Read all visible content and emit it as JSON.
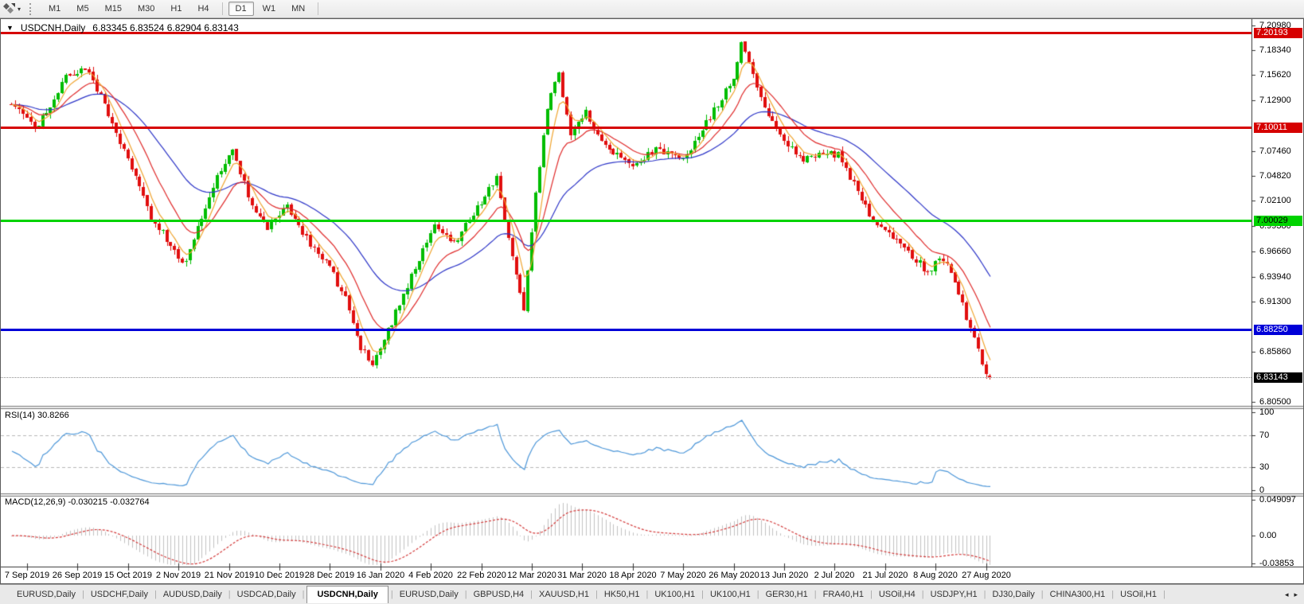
{
  "toolbar": {
    "timeframes": [
      "M1",
      "M5",
      "M15",
      "M30",
      "H1",
      "H4",
      "D1",
      "W1",
      "MN"
    ],
    "active_timeframe": "D1"
  },
  "icons": {
    "title_dropdown": "▼",
    "tool_dropdown": "▾",
    "tab_scroll_left": "◂",
    "tab_scroll_right": "▸"
  },
  "chart_header": {
    "symbol": "USDCNH,Daily",
    "ohlc": "6.83345 6.83524 6.82904 6.83143"
  },
  "price_axis": {
    "ticks": [
      "7.20980",
      "7.18340",
      "7.15620",
      "7.12900",
      "7.07460",
      "7.04820",
      "7.02100",
      "6.99380",
      "6.96660",
      "6.93940",
      "6.91300",
      "6.85860",
      "6.80500"
    ]
  },
  "levels": [
    {
      "label": "7.20193",
      "value": 7.20193,
      "color": "#d60000",
      "text_color": "#ffffff"
    },
    {
      "label": "7.10011",
      "value": 7.10011,
      "color": "#d60000",
      "text_color": "#ffffff"
    },
    {
      "label": "7.00029",
      "value": 7.00029,
      "color": "#00d300",
      "text_color": "#000000"
    },
    {
      "label": "6.88250",
      "value": 6.8825,
      "color": "#0000d8",
      "text_color": "#ffffff"
    }
  ],
  "current_price": {
    "label": "6.83143",
    "value": 6.83143,
    "color": "#000000",
    "text_color": "#ffffff"
  },
  "rsi": {
    "label": "RSI(14) 30.8266",
    "period": 14,
    "value": 30.8266,
    "axis_labels": [
      "100",
      "70",
      "30",
      "0"
    ],
    "axis_values": [
      100,
      70,
      30,
      0
    ],
    "level_lines": [
      70,
      30
    ]
  },
  "macd": {
    "label": "MACD(12,26,9) -0.030215 -0.032764",
    "fast": 12,
    "slow": 26,
    "signal": 9,
    "main_value": -0.030215,
    "signal_value": -0.032764,
    "axis_labels": [
      {
        "label": "0.049097",
        "value": 0.049097
      },
      {
        "label": "0.00",
        "value": 0
      },
      {
        "label": "-0.03853",
        "value": -0.03853
      }
    ]
  },
  "tabs": {
    "separator": "|",
    "active_index": 4,
    "items": [
      "EURUSD,Daily",
      "USDCHF,Daily",
      "AUDUSD,Daily",
      "USDCAD,Daily",
      "USDCNH,Daily",
      "EURUSD,Daily",
      "GBPUSD,H4",
      "XAUUSD,H1",
      "HK50,H1",
      "UK100,H1",
      "UK100,H1",
      "GER30,H1",
      "FRA40,H1",
      "USOil,H4",
      "USDJPY,H1",
      "DJ30,Daily",
      "CHINA300,H1",
      "USOil,H1"
    ]
  },
  "colors": {
    "candle_up": "#00bd00",
    "candle_down": "#e10e0e",
    "ma_fast": "#f0a42e",
    "ma_mid": "#e02a2a",
    "ma_slow": "#2d35c8",
    "rsi_line": "#4d97d9",
    "rsi_level_dash": "#b8b8b8",
    "macd_hist": "#c2c2c2",
    "macd_signal": "#d43a3a"
  },
  "chart_data": {
    "type": "candlestick",
    "symbol": "USDCNH",
    "timeframe": "Daily",
    "ylim": [
      6.805,
      7.2098
    ],
    "bars": 253,
    "dates": [
      "7 Sep 2019",
      "26 Sep 2019",
      "15 Oct 2019",
      "2 Nov 2019",
      "21 Nov 2019",
      "10 Dec 2019",
      "28 Dec 2019",
      "16 Jan 2020",
      "4 Feb 2020",
      "22 Feb 2020",
      "12 Mar 2020",
      "31 Mar 2020",
      "18 Apr 2020",
      "7 May 2020",
      "26 May 2020",
      "13 Jun 2020",
      "2 Jul 2020",
      "21 Jul 2020",
      "8 Aug 2020",
      "27 Aug 2020"
    ],
    "last_candle": {
      "open": 6.83345,
      "high": 6.83524,
      "low": 6.82904,
      "close": 6.83143
    },
    "price_path": [
      [
        0,
        7.125
      ],
      [
        6,
        7.1
      ],
      [
        10,
        7.12
      ],
      [
        14,
        7.155
      ],
      [
        19,
        7.165
      ],
      [
        24,
        7.125
      ],
      [
        30,
        7.065
      ],
      [
        36,
        7.005
      ],
      [
        42,
        6.967
      ],
      [
        45,
        6.953
      ],
      [
        49,
        7.005
      ],
      [
        53,
        7.05
      ],
      [
        57,
        7.075
      ],
      [
        62,
        7.015
      ],
      [
        66,
        6.993
      ],
      [
        71,
        7.015
      ],
      [
        77,
        6.975
      ],
      [
        82,
        6.95
      ],
      [
        86,
        6.915
      ],
      [
        90,
        6.862
      ],
      [
        93,
        6.845
      ],
      [
        99,
        6.9
      ],
      [
        105,
        6.96
      ],
      [
        109,
        6.995
      ],
      [
        114,
        6.975
      ],
      [
        121,
        7.02
      ],
      [
        125,
        7.045
      ],
      [
        129,
        6.96
      ],
      [
        132,
        6.905
      ],
      [
        135,
        7.03
      ],
      [
        138,
        7.12
      ],
      [
        141,
        7.16
      ],
      [
        144,
        7.09
      ],
      [
        148,
        7.115
      ],
      [
        153,
        7.08
      ],
      [
        160,
        7.06
      ],
      [
        166,
        7.075
      ],
      [
        173,
        7.065
      ],
      [
        178,
        7.1
      ],
      [
        183,
        7.13
      ],
      [
        186,
        7.155
      ],
      [
        188,
        7.19
      ],
      [
        191,
        7.155
      ],
      [
        195,
        7.115
      ],
      [
        199,
        7.085
      ],
      [
        204,
        7.065
      ],
      [
        209,
        7.075
      ],
      [
        213,
        7.07
      ],
      [
        217,
        7.04
      ],
      [
        222,
        7.0
      ],
      [
        226,
        6.985
      ],
      [
        231,
        6.965
      ],
      [
        236,
        6.945
      ],
      [
        240,
        6.96
      ],
      [
        244,
        6.92
      ],
      [
        247,
        6.885
      ],
      [
        250,
        6.845
      ],
      [
        252,
        6.83143
      ]
    ],
    "moving_averages": [
      {
        "name": "fast",
        "period": 5,
        "color": "#f0a42e"
      },
      {
        "name": "mid",
        "period": 13,
        "color": "#e02a2a"
      },
      {
        "name": "slow",
        "period": 34,
        "color": "#2d35c8"
      }
    ]
  }
}
